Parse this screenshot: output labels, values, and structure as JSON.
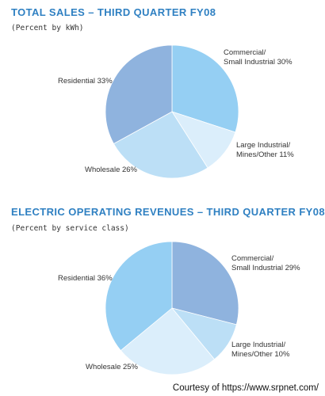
{
  "colors": {
    "title": "#2f80c2",
    "residential_1": "#8fb3de",
    "commercial_1": "#95cff3",
    "large_industrial_1": "#dbeefb",
    "wholesale_1": "#bcdff6",
    "residential_2": "#95cff3",
    "commercial_2": "#8fb3de",
    "large_industrial_2": "#bcdff6",
    "wholesale_2": "#dbeefb"
  },
  "chart_data": [
    {
      "type": "pie",
      "title": "TOTAL SALES – THIRD QUARTER FY08",
      "subtitle": "(Percent by kWh)",
      "slices": [
        {
          "key": "commercial",
          "label_lines": [
            "Commercial/",
            "Small Industrial 30%"
          ],
          "value": 30,
          "color_key": "commercial_1"
        },
        {
          "key": "large_industrial",
          "label_lines": [
            "Large Industrial/",
            "Mines/Other 11%"
          ],
          "value": 11,
          "color_key": "large_industrial_1"
        },
        {
          "key": "wholesale",
          "label_lines": [
            "Wholesale 26%"
          ],
          "value": 26,
          "color_key": "wholesale_1"
        },
        {
          "key": "residential",
          "label_lines": [
            "Residential 33%"
          ],
          "value": 33,
          "color_key": "residential_1"
        }
      ]
    },
    {
      "type": "pie",
      "title": "ELECTRIC OPERATING REVENUES – THIRD QUARTER FY08",
      "subtitle": "(Percent by service class)",
      "slices": [
        {
          "key": "commercial",
          "label_lines": [
            "Commercial/",
            "Small Industrial 29%"
          ],
          "value": 29,
          "color_key": "commercial_2"
        },
        {
          "key": "large_industrial",
          "label_lines": [
            "Large Industrial/",
            "Mines/Other 10%"
          ],
          "value": 10,
          "color_key": "large_industrial_2"
        },
        {
          "key": "wholesale",
          "label_lines": [
            "Wholesale 25%"
          ],
          "value": 25,
          "color_key": "wholesale_2"
        },
        {
          "key": "residential",
          "label_lines": [
            "Residential 36%"
          ],
          "value": 36,
          "color_key": "residential_2"
        }
      ]
    }
  ],
  "credit": "Courtesy of https://www.srpnet.com/"
}
